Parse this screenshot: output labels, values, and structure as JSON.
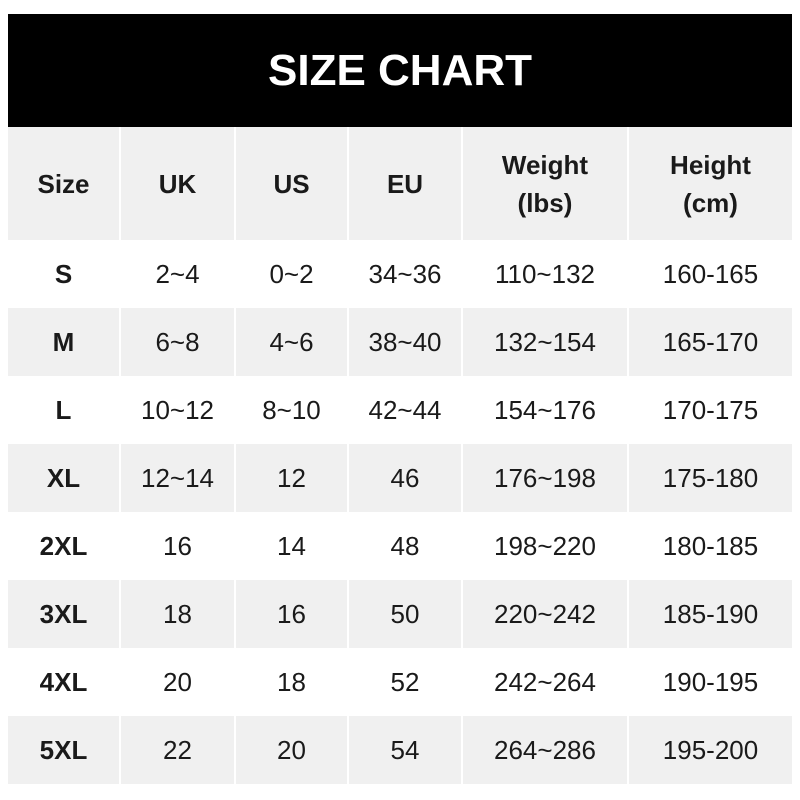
{
  "title": "SIZE CHART",
  "headers": [
    "Size",
    "UK",
    "US",
    "EU",
    "Weight\n(lbs)",
    "Height\n(cm)"
  ],
  "rows": [
    [
      "S",
      "2~4",
      "0~2",
      "34~36",
      "110~132",
      "160-165"
    ],
    [
      "M",
      "6~8",
      "4~6",
      "38~40",
      "132~154",
      "165-170"
    ],
    [
      "L",
      "10~12",
      "8~10",
      "42~44",
      "154~176",
      "170-175"
    ],
    [
      "XL",
      "12~14",
      "12",
      "46",
      "176~198",
      "175-180"
    ],
    [
      "2XL",
      "16",
      "14",
      "48",
      "198~220",
      "180-185"
    ],
    [
      "3XL",
      "18",
      "16",
      "50",
      "220~242",
      "185-190"
    ],
    [
      "4XL",
      "20",
      "18",
      "52",
      "242~264",
      "190-195"
    ],
    [
      "5XL",
      "22",
      "20",
      "54",
      "264~286",
      "195-200"
    ]
  ],
  "colors": {
    "title_bg": "#000000",
    "header_bg": "#f0f0f0",
    "stripe_bg": "#f0f0f0"
  }
}
